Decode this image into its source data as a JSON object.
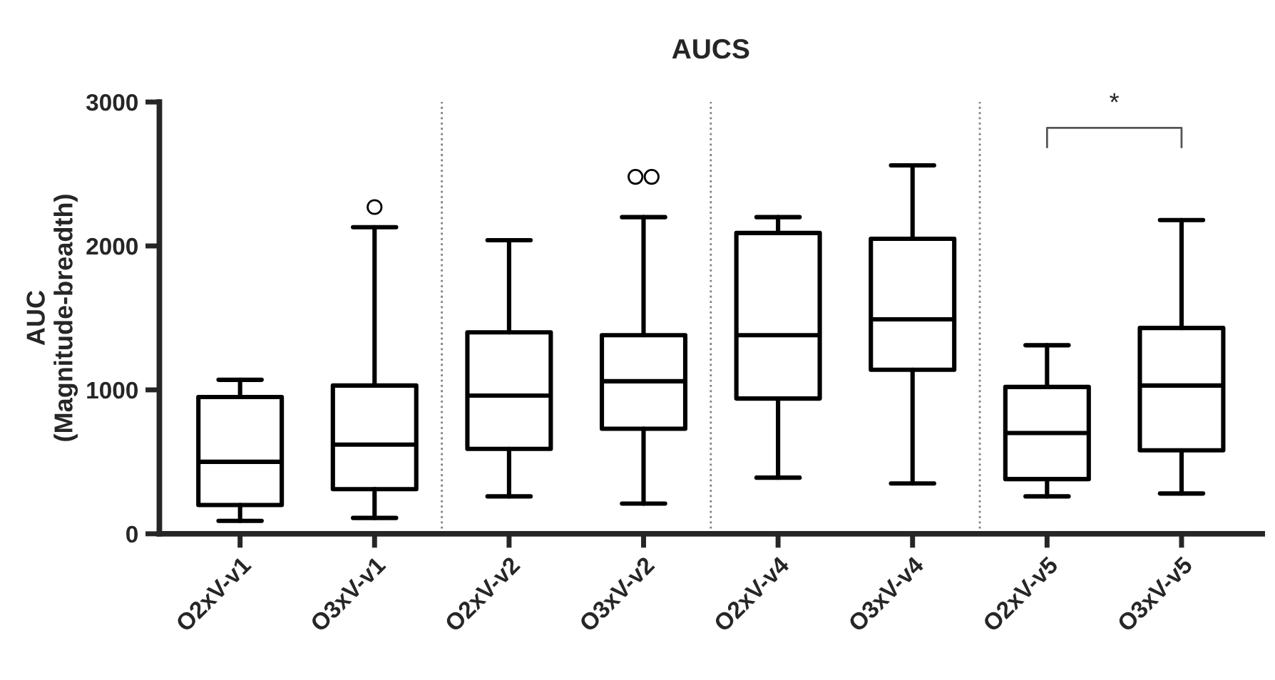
{
  "chart_data": {
    "type": "box",
    "title": "AUCS",
    "ylabel": "AUC\n(Magnitude-breadth)",
    "categories": [
      "O2xV-v1",
      "O3xV-v1",
      "O2xV-v2",
      "O3xV-v2",
      "O2xV-v4",
      "O3xV-v4",
      "O2xV-v5",
      "O3xV-v5"
    ],
    "boxes": [
      {
        "low": 90,
        "q1": 200,
        "median": 500,
        "q3": 950,
        "high": 1070
      },
      {
        "low": 110,
        "q1": 310,
        "median": 620,
        "q3": 1030,
        "high": 2130,
        "outliers": [
          2270
        ]
      },
      {
        "low": 260,
        "q1": 590,
        "median": 960,
        "q3": 1400,
        "high": 2040
      },
      {
        "low": 210,
        "q1": 730,
        "median": 1060,
        "q3": 1380,
        "high": 2200,
        "outliers": [
          2480,
          2480
        ]
      },
      {
        "low": 390,
        "q1": 940,
        "median": 1380,
        "q3": 2090,
        "high": 2200
      },
      {
        "low": 350,
        "q1": 1140,
        "median": 1490,
        "q3": 2050,
        "high": 2560
      },
      {
        "low": 260,
        "q1": 380,
        "median": 700,
        "q3": 1020,
        "high": 1310
      },
      {
        "low": 280,
        "q1": 580,
        "median": 1030,
        "q3": 1430,
        "high": 2180
      }
    ],
    "ylim": [
      0,
      3000
    ],
    "yticks": [
      0,
      1000,
      2000,
      3000
    ],
    "grid": false,
    "annotations": [
      "*"
    ]
  }
}
